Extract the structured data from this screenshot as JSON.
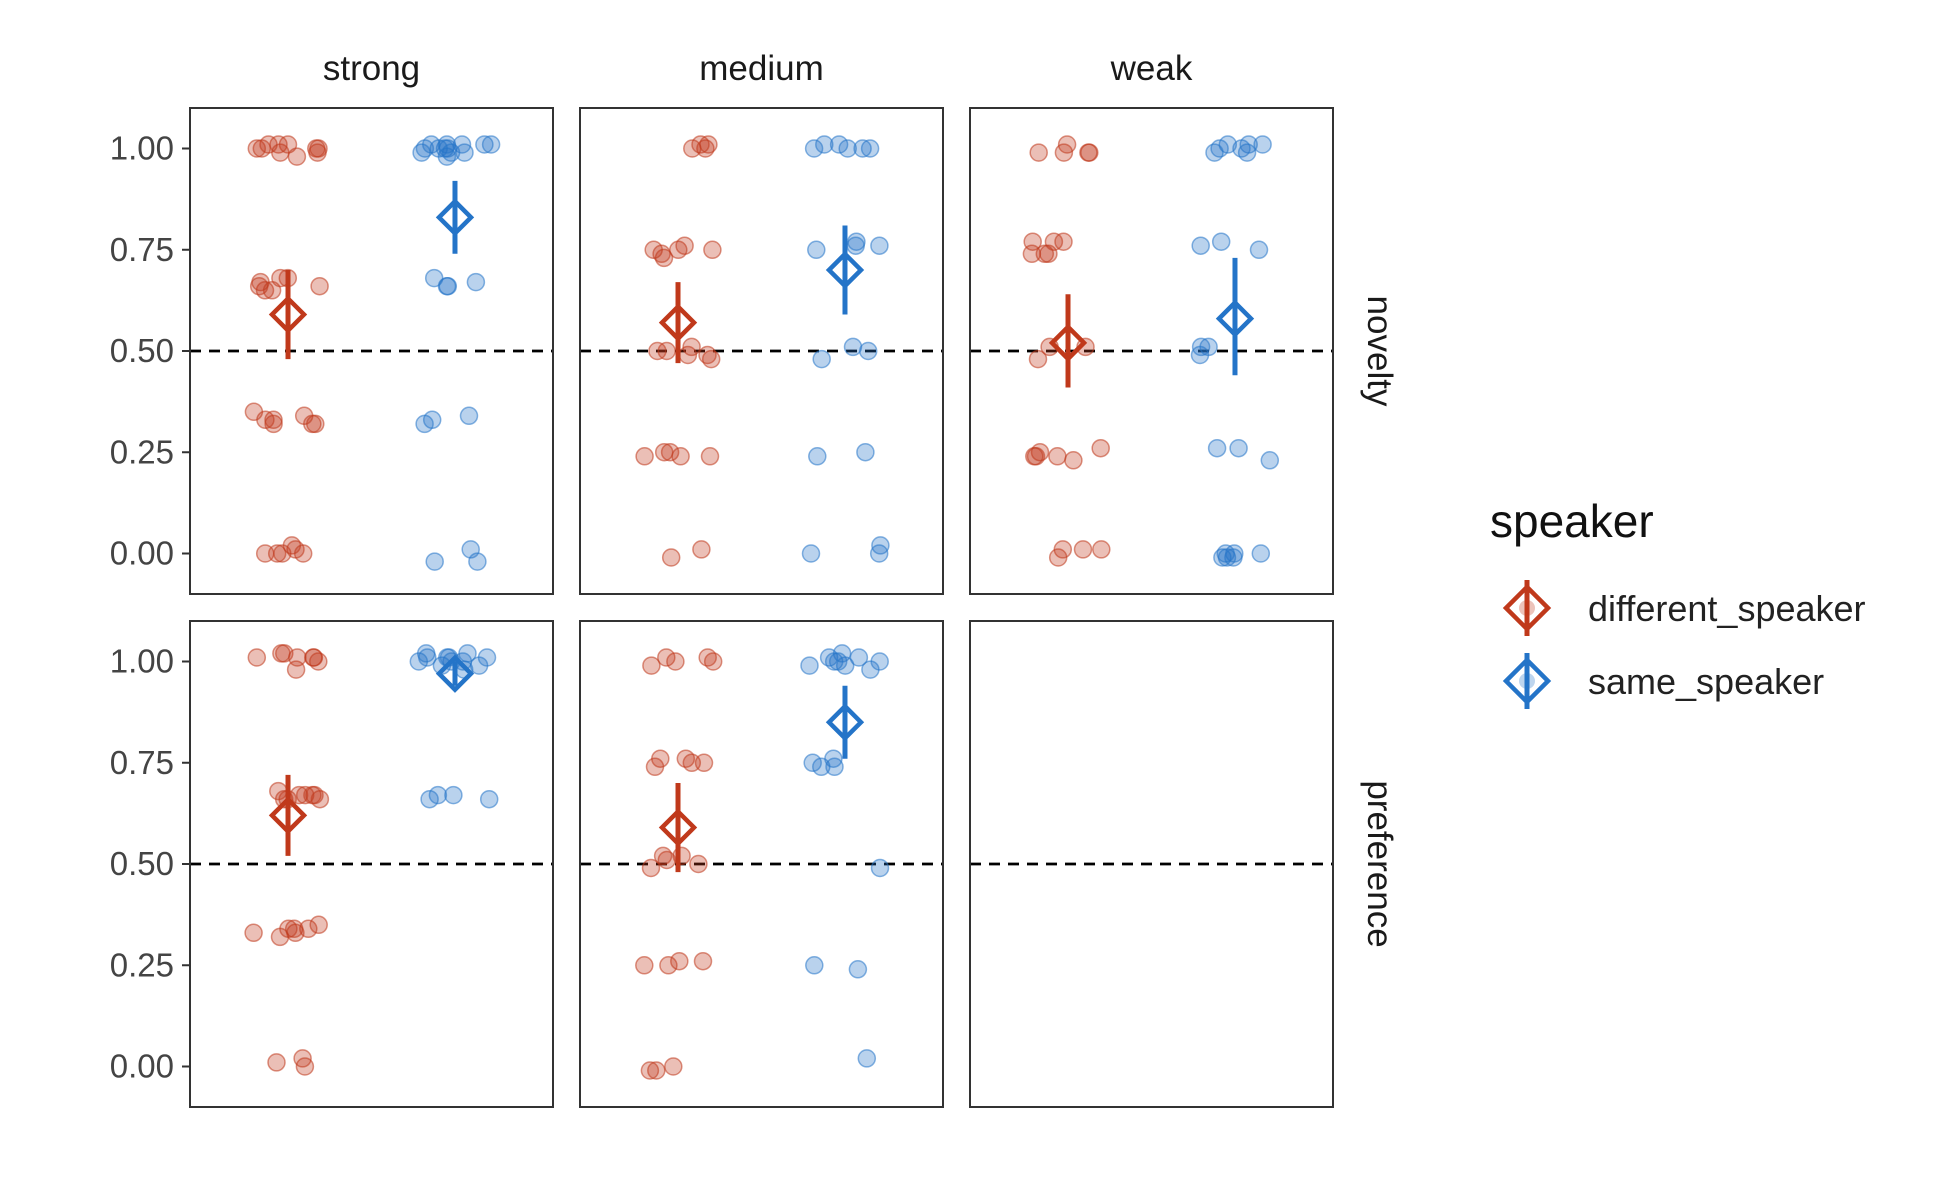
{
  "chart_data": {
    "type": "scatter",
    "facet_columns": [
      "strong",
      "medium",
      "weak"
    ],
    "facet_rows": [
      "novelty",
      "preference"
    ],
    "y_ticks": [
      "0.00",
      "0.25",
      "0.50",
      "0.75",
      "1.00"
    ],
    "ylim": [
      -0.1,
      1.1
    ],
    "reference_line_y": 0.5,
    "legend": {
      "title": "speaker",
      "placement": "right",
      "entries": [
        "different_speaker",
        "same_speaker"
      ]
    },
    "colors": {
      "different_speaker": "#C0391B",
      "same_speaker": "#2474C8"
    },
    "panels": [
      {
        "row": "novelty",
        "col": "strong",
        "summary": {
          "different_speaker": {
            "mean": 0.59,
            "low": 0.48,
            "high": 0.7
          },
          "same_speaker": {
            "mean": 0.83,
            "low": 0.74,
            "high": 0.92
          }
        },
        "points": {
          "different_speaker": [
            1.0,
            1.0,
            1.0,
            0.99,
            0.99,
            1.0,
            1.01,
            1.01,
            0.98,
            1.01,
            0.67,
            0.66,
            0.68,
            0.65,
            0.68,
            0.65,
            0.66,
            0.34,
            0.32,
            0.33,
            0.35,
            0.32,
            0.33,
            0.32,
            0.0,
            0.0,
            0.02,
            0.0,
            0.0,
            0.01
          ],
          "same_speaker": [
            1.0,
            1.01,
            1.0,
            0.99,
            1.01,
            1.0,
            0.99,
            1.01,
            1.01,
            1.0,
            1.01,
            0.99,
            0.98,
            0.67,
            0.66,
            0.66,
            0.68,
            0.33,
            0.34,
            0.32,
            -0.02,
            0.01,
            -0.02
          ]
        }
      },
      {
        "row": "novelty",
        "col": "medium",
        "summary": {
          "different_speaker": {
            "mean": 0.57,
            "low": 0.47,
            "high": 0.67
          },
          "same_speaker": {
            "mean": 0.7,
            "low": 0.59,
            "high": 0.81
          }
        },
        "points": {
          "different_speaker": [
            1.01,
            1.0,
            1.01,
            1.0,
            0.76,
            0.75,
            0.75,
            0.74,
            0.73,
            0.75,
            0.5,
            0.49,
            0.51,
            0.5,
            0.49,
            0.48,
            0.25,
            0.24,
            0.25,
            0.24,
            0.24,
            -0.01,
            0.01
          ],
          "same_speaker": [
            1.0,
            1.01,
            1.0,
            1.0,
            1.0,
            1.01,
            0.76,
            0.75,
            0.77,
            0.76,
            0.51,
            0.5,
            0.48,
            0.25,
            0.24,
            0.02,
            0.0,
            0.0
          ]
        }
      },
      {
        "row": "novelty",
        "col": "weak",
        "summary": {
          "different_speaker": {
            "mean": 0.52,
            "low": 0.41,
            "high": 0.64
          },
          "same_speaker": {
            "mean": 0.58,
            "low": 0.44,
            "high": 0.73
          }
        },
        "points": {
          "different_speaker": [
            1.01,
            0.99,
            0.99,
            0.99,
            0.99,
            0.74,
            0.74,
            0.77,
            0.77,
            0.77,
            0.74,
            0.51,
            0.51,
            0.48,
            0.25,
            0.26,
            0.23,
            0.24,
            0.24,
            0.24,
            0.01,
            -0.01,
            0.01,
            0.01
          ],
          "same_speaker": [
            1.01,
            1.01,
            1.0,
            1.01,
            0.99,
            1.0,
            0.99,
            0.77,
            0.76,
            0.75,
            0.51,
            0.49,
            0.51,
            0.26,
            0.23,
            0.26,
            -0.01,
            -0.01,
            0.0,
            0.0,
            -0.01,
            0.0
          ]
        }
      },
      {
        "row": "preference",
        "col": "strong",
        "summary": {
          "different_speaker": {
            "mean": 0.62,
            "low": 0.52,
            "high": 0.72
          },
          "same_speaker": {
            "mean": 0.97,
            "low": 0.94,
            "high": 1.0
          }
        },
        "points": {
          "different_speaker": [
            1.01,
            1.01,
            0.98,
            1.02,
            1.01,
            1.01,
            1.02,
            1.0,
            0.67,
            0.68,
            0.66,
            0.67,
            0.67,
            0.67,
            0.66,
            0.66,
            0.34,
            0.34,
            0.32,
            0.33,
            0.35,
            0.34,
            0.33,
            0.01,
            0.02,
            0.0
          ],
          "same_speaker": [
            1.0,
            1.01,
            0.99,
            1.02,
            1.0,
            0.99,
            1.01,
            1.01,
            1.0,
            1.02,
            0.98,
            1.01,
            0.66,
            0.67,
            0.67,
            0.66
          ]
        }
      },
      {
        "row": "preference",
        "col": "medium",
        "summary": {
          "different_speaker": {
            "mean": 0.59,
            "low": 0.48,
            "high": 0.7
          },
          "same_speaker": {
            "mean": 0.85,
            "low": 0.76,
            "high": 0.94
          }
        },
        "points": {
          "different_speaker": [
            1.01,
            1.0,
            1.0,
            1.01,
            0.99,
            0.76,
            0.74,
            0.75,
            0.76,
            0.75,
            0.52,
            0.51,
            0.5,
            0.49,
            0.52,
            0.25,
            0.26,
            0.26,
            0.25,
            -0.01,
            0.0,
            -0.01
          ],
          "same_speaker": [
            1.0,
            1.02,
            1.01,
            1.0,
            0.99,
            1.01,
            1.0,
            0.99,
            0.98,
            0.75,
            0.74,
            0.74,
            0.76,
            0.49,
            0.25,
            0.24,
            0.02
          ]
        }
      },
      {
        "row": "preference",
        "col": "weak",
        "summary": null,
        "points": {
          "different_speaker": [],
          "same_speaker": []
        }
      }
    ]
  }
}
